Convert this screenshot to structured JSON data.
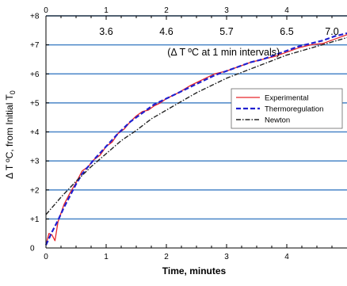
{
  "chart_data": {
    "type": "line",
    "xlabel": "Time, minutes",
    "ylabel": "Δ T ºC, from Initial T",
    "ylabel_subscript": "0",
    "xlim": [
      0,
      5
    ],
    "ylim": [
      0,
      8
    ],
    "x_ticks": [
      "0",
      "1",
      "2",
      "3",
      "4"
    ],
    "x_ticks_top": [
      "0",
      "1",
      "2",
      "3",
      "4"
    ],
    "y_ticks": [
      "0",
      "+1",
      "+2",
      "+3",
      "+4",
      "+5",
      "+6",
      "+7",
      "+8"
    ],
    "grid": "horizontal",
    "grid_color": "#4a86c8",
    "interval_annotation": {
      "text": "(Δ T ºC  at 1 min intervals)",
      "x": 2.95,
      "y": 6.75,
      "labels": [
        {
          "text": "3.6",
          "x": 1.0
        },
        {
          "text": "4.6",
          "x": 2.0
        },
        {
          "text": "5.7",
          "x": 3.0
        },
        {
          "text": "6.5",
          "x": 4.0
        },
        {
          "text": "7.0",
          "x": 4.75
        }
      ],
      "labels_y": 7.45
    },
    "legend": {
      "placement": "right",
      "entries": [
        {
          "label": "Experimental",
          "color": "#e8262a",
          "style": "solid"
        },
        {
          "label": "Thermoregulation",
          "color": "#2020d0",
          "style": "dashed"
        },
        {
          "label": "Newton",
          "color": "#222222",
          "style": "dashdot"
        }
      ]
    },
    "series": [
      {
        "name": "Experimental",
        "color": "#e8262a",
        "style": "solid",
        "x": [
          0,
          0.05,
          0.1,
          0.15,
          0.2,
          0.25,
          0.3,
          0.4,
          0.5,
          0.6,
          0.7,
          0.8,
          0.9,
          1.0,
          1.1,
          1.2,
          1.3,
          1.4,
          1.5,
          1.6,
          1.7,
          1.8,
          1.9,
          2.0,
          2.2,
          2.4,
          2.6,
          2.8,
          3.0,
          3.2,
          3.4,
          3.6,
          3.8,
          4.0,
          4.2,
          4.4,
          4.6,
          4.8,
          5.0
        ],
        "y": [
          0.1,
          0.5,
          0.45,
          0.25,
          0.9,
          1.2,
          1.5,
          1.9,
          2.25,
          2.65,
          2.8,
          3.05,
          3.2,
          3.5,
          3.65,
          3.95,
          4.1,
          4.35,
          4.55,
          4.7,
          4.75,
          4.9,
          5.0,
          5.15,
          5.35,
          5.6,
          5.8,
          6.0,
          6.1,
          6.25,
          6.4,
          6.5,
          6.6,
          6.75,
          6.9,
          7.0,
          7.05,
          7.2,
          7.35
        ]
      },
      {
        "name": "Thermoregulation",
        "color": "#2020d0",
        "style": "dashed",
        "x": [
          0,
          0.1,
          0.2,
          0.3,
          0.4,
          0.5,
          0.6,
          0.8,
          1.0,
          1.2,
          1.4,
          1.6,
          1.8,
          2.0,
          2.2,
          2.4,
          2.6,
          2.8,
          3.0,
          3.2,
          3.4,
          3.6,
          3.8,
          4.0,
          4.2,
          4.4,
          4.6,
          4.8,
          5.0
        ],
        "y": [
          0.1,
          0.55,
          0.95,
          1.4,
          1.8,
          2.2,
          2.55,
          3.05,
          3.5,
          3.95,
          4.35,
          4.65,
          4.95,
          5.15,
          5.35,
          5.55,
          5.75,
          5.95,
          6.1,
          6.25,
          6.4,
          6.5,
          6.65,
          6.8,
          6.95,
          7.05,
          7.15,
          7.3,
          7.4
        ]
      },
      {
        "name": "Newton",
        "color": "#222222",
        "style": "dashdot",
        "x": [
          0,
          0.25,
          0.5,
          0.75,
          1.0,
          1.25,
          1.5,
          1.75,
          2.0,
          2.25,
          2.5,
          2.75,
          3.0,
          3.25,
          3.5,
          3.75,
          4.0,
          4.25,
          4.5,
          4.75,
          5.0
        ],
        "y": [
          1.15,
          1.75,
          2.3,
          2.8,
          3.25,
          3.7,
          4.05,
          4.45,
          4.75,
          5.05,
          5.35,
          5.6,
          5.85,
          6.05,
          6.25,
          6.45,
          6.65,
          6.8,
          6.95,
          7.1,
          7.25
        ]
      }
    ]
  }
}
